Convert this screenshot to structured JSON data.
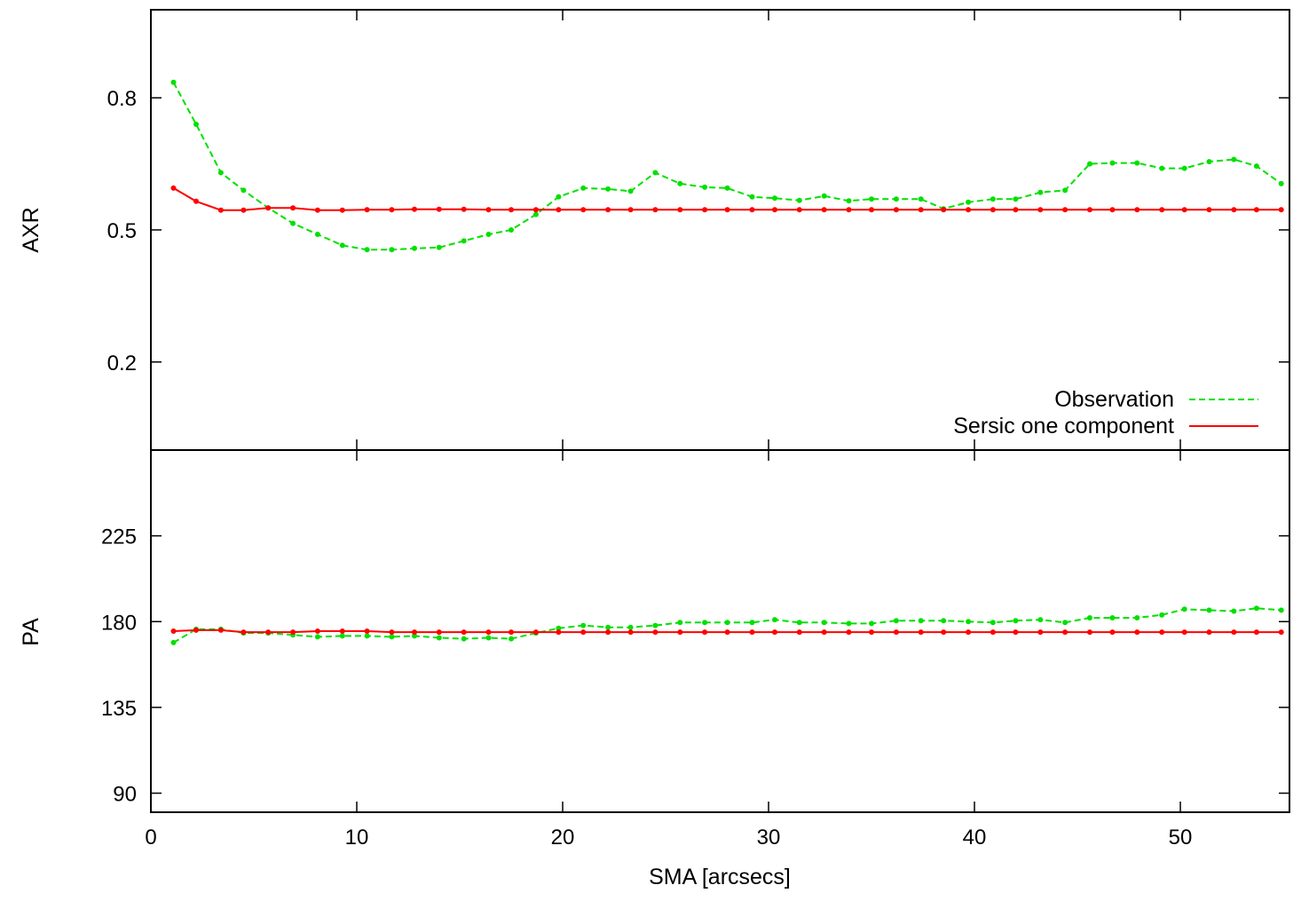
{
  "chart_data": [
    {
      "type": "line",
      "ylabel": "AXR",
      "xlim": [
        0,
        55.3
      ],
      "ylim": [
        0.0,
        1.0
      ],
      "yticks": [
        "0.2",
        "0.5",
        "0.8"
      ],
      "xticks_shown": false,
      "legend_position": "bottom-right",
      "series": [
        {
          "name": "Observation",
          "color": "#00e000",
          "style": "dashed",
          "x": [
            1.1,
            2.2,
            3.4,
            4.5,
            5.7,
            6.9,
            8.1,
            9.3,
            10.5,
            11.7,
            12.8,
            14.0,
            15.2,
            16.4,
            17.5,
            18.7,
            19.8,
            21.0,
            22.2,
            23.3,
            24.5,
            25.7,
            26.9,
            28.0,
            29.2,
            30.3,
            31.5,
            32.7,
            33.9,
            35.0,
            36.2,
            37.4,
            38.5,
            39.7,
            40.9,
            42.0,
            43.2,
            44.4,
            45.6,
            46.7,
            47.9,
            49.1,
            50.2,
            51.4,
            52.6,
            53.7,
            54.9
          ],
          "values": [
            0.835,
            0.74,
            0.63,
            0.59,
            0.55,
            0.515,
            0.49,
            0.465,
            0.455,
            0.455,
            0.458,
            0.46,
            0.475,
            0.49,
            0.5,
            0.535,
            0.575,
            0.595,
            0.593,
            0.588,
            0.63,
            0.605,
            0.597,
            0.595,
            0.575,
            0.572,
            0.567,
            0.577,
            0.566,
            0.57,
            0.57,
            0.57,
            0.548,
            0.563,
            0.57,
            0.57,
            0.585,
            0.59,
            0.65,
            0.652,
            0.652,
            0.64,
            0.64,
            0.655,
            0.66,
            0.645,
            0.605
          ]
        },
        {
          "name": "Sersic one component",
          "color": "#ff0000",
          "style": "solid",
          "x": [
            1.1,
            2.2,
            3.4,
            4.5,
            5.7,
            6.9,
            8.1,
            9.3,
            10.5,
            11.7,
            12.8,
            14.0,
            15.2,
            16.4,
            17.5,
            18.7,
            19.8,
            21.0,
            22.2,
            23.3,
            24.5,
            25.7,
            26.9,
            28.0,
            29.2,
            30.3,
            31.5,
            32.7,
            33.9,
            35.0,
            36.2,
            37.4,
            38.5,
            39.7,
            40.9,
            42.0,
            43.2,
            44.4,
            45.6,
            46.7,
            47.9,
            49.1,
            50.2,
            51.4,
            52.6,
            53.7,
            54.9
          ],
          "values": [
            0.595,
            0.565,
            0.545,
            0.545,
            0.55,
            0.55,
            0.545,
            0.545,
            0.546,
            0.546,
            0.547,
            0.547,
            0.547,
            0.546,
            0.546,
            0.546,
            0.546,
            0.546,
            0.546,
            0.546,
            0.546,
            0.546,
            0.546,
            0.546,
            0.546,
            0.546,
            0.546,
            0.546,
            0.546,
            0.546,
            0.546,
            0.546,
            0.546,
            0.546,
            0.546,
            0.546,
            0.546,
            0.546,
            0.546,
            0.546,
            0.546,
            0.546,
            0.546,
            0.546,
            0.546,
            0.546,
            0.546
          ]
        }
      ]
    },
    {
      "type": "line",
      "ylabel": "PA",
      "xlabel": "SMA [arcsecs]",
      "xlim": [
        0,
        55.3
      ],
      "ylim": [
        80,
        270
      ],
      "xticks": [
        "0",
        "10",
        "20",
        "30",
        "40",
        "50"
      ],
      "yticks": [
        "90",
        "135",
        "180",
        "225"
      ],
      "series": [
        {
          "name": "Observation",
          "color": "#00e000",
          "style": "dashed",
          "x": [
            1.1,
            2.2,
            3.4,
            4.5,
            5.7,
            6.9,
            8.1,
            9.3,
            10.5,
            11.7,
            12.8,
            14.0,
            15.2,
            16.4,
            17.5,
            18.7,
            19.8,
            21.0,
            22.2,
            23.3,
            24.5,
            25.7,
            26.9,
            28.0,
            29.2,
            30.3,
            31.5,
            32.7,
            33.9,
            35.0,
            36.2,
            37.4,
            38.5,
            39.7,
            40.9,
            42.0,
            43.2,
            44.4,
            45.6,
            46.7,
            47.9,
            49.1,
            50.2,
            51.4,
            52.6,
            53.7,
            54.9
          ],
          "values": [
            169,
            176,
            176,
            174,
            174,
            173,
            172,
            172.5,
            172.5,
            172,
            172.5,
            171.5,
            171,
            171.5,
            171,
            174,
            176.5,
            178,
            177,
            177,
            178,
            179.5,
            179.5,
            179.5,
            179.5,
            181,
            179.5,
            179.5,
            179,
            179,
            180.5,
            180.5,
            180.5,
            180,
            179.5,
            180.5,
            181,
            179.5,
            182,
            182,
            182,
            183.5,
            186.5,
            186,
            185.5,
            187,
            186
          ]
        },
        {
          "name": "Sersic one component",
          "color": "#ff0000",
          "style": "solid",
          "x": [
            1.1,
            2.2,
            3.4,
            4.5,
            5.7,
            6.9,
            8.1,
            9.3,
            10.5,
            11.7,
            12.8,
            14.0,
            15.2,
            16.4,
            17.5,
            18.7,
            19.8,
            21.0,
            22.2,
            23.3,
            24.5,
            25.7,
            26.9,
            28.0,
            29.2,
            30.3,
            31.5,
            32.7,
            33.9,
            35.0,
            36.2,
            37.4,
            38.5,
            39.7,
            40.9,
            42.0,
            43.2,
            44.4,
            45.6,
            46.7,
            47.9,
            49.1,
            50.2,
            51.4,
            52.6,
            53.7,
            54.9
          ],
          "values": [
            175,
            175.5,
            175.5,
            174.5,
            174.5,
            174.5,
            175,
            175,
            175,
            174.5,
            174.5,
            174.5,
            174.5,
            174.5,
            174.5,
            174.5,
            174.5,
            174.5,
            174.5,
            174.5,
            174.5,
            174.5,
            174.5,
            174.5,
            174.5,
            174.5,
            174.5,
            174.5,
            174.5,
            174.5,
            174.5,
            174.5,
            174.5,
            174.5,
            174.5,
            174.5,
            174.5,
            174.5,
            174.5,
            174.5,
            174.5,
            174.5,
            174.5,
            174.5,
            174.5,
            174.5,
            174.5
          ]
        }
      ]
    }
  ]
}
